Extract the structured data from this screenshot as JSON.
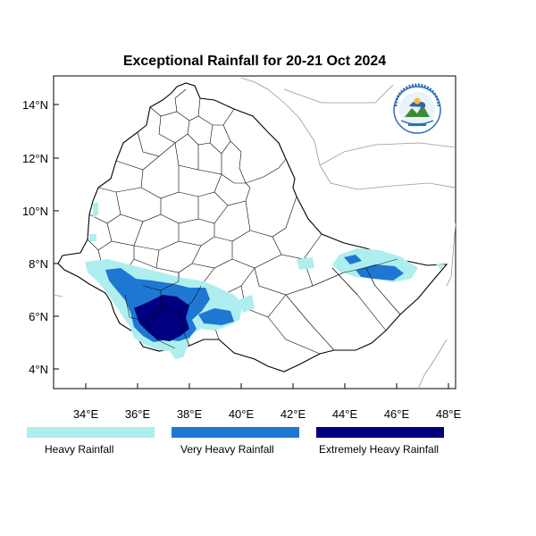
{
  "title": "Exceptional Rainfall for 20-21 Oct 2024",
  "map": {
    "lon_range": [
      32.0,
      48.2
    ],
    "lat_range": [
      3.3,
      15.2
    ],
    "x_ticks": [
      "34°E",
      "36°E",
      "38°E",
      "40°E",
      "42°E",
      "44°E",
      "46°E",
      "48°E"
    ],
    "y_ticks": [
      "4°N",
      "6°N",
      "8°N",
      "10°N",
      "12°N",
      "14°N"
    ],
    "country_fill": "#ffffff",
    "border_color": "#000000",
    "neighbor_color": "#999999"
  },
  "legend": [
    {
      "label": "Heavy Rainfall",
      "color": "#aeeeee"
    },
    {
      "label": "Very Heavy Rainfall",
      "color": "#1e78d2"
    },
    {
      "label": "Extremely Heavy Rainfall",
      "color": "#000080"
    }
  ],
  "logo": {
    "name": "ethiopian-meteorology-institute-logo",
    "text": "የኢትዮጵያ ሜትዮሮሎጂ ኢንስቲትዩት"
  }
}
